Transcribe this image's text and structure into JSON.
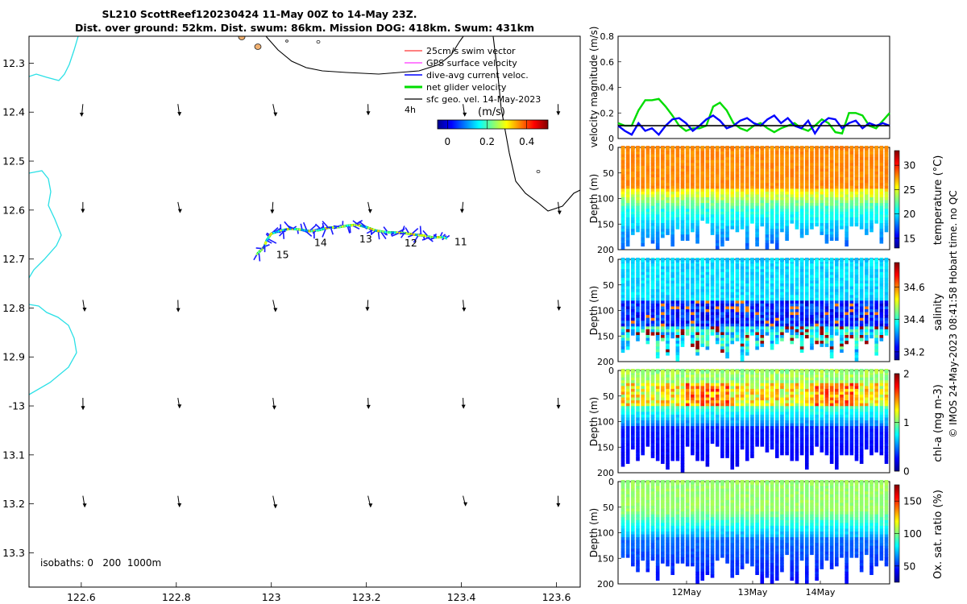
{
  "title": {
    "line1": "SL210 ScottReef120230424 11-May 00Z to 14-May 23Z.",
    "line2": "Dist. over ground: 52km. Dist. swum: 86km. Mission DOG: 418km. Swum: 431km"
  },
  "credit": "© IMOS 24-May-2023 08:41:58 Hobart time. no QC",
  "chart_data": [
    {
      "type": "scatter",
      "name": "glider-track-map",
      "xlim": [
        122.49,
        123.65
      ],
      "ylim": [
        -13.37,
        -12.245
      ],
      "xticks": [
        122.6,
        122.8,
        123,
        123.2,
        123.4,
        123.6
      ],
      "xtick_labels": [
        "122.6",
        "122.8",
        "123",
        "123.2",
        "123.4",
        "123.6"
      ],
      "yticks": [
        -12.3,
        -12.4,
        -12.5,
        -12.6,
        -12.7,
        -12.8,
        -12.9,
        -13,
        -13.1,
        -13.2,
        -13.3
      ],
      "ytick_labels": [
        "12.3",
        "12.4",
        "12.5",
        "12.6",
        "12.7",
        "12.8",
        "12.9",
        "-13",
        "13.1",
        "13.2",
        "13.3"
      ],
      "legend": {
        "position": "top-right",
        "items": [
          {
            "label": "25cm/s swim vector",
            "color": "#ff0000"
          },
          {
            "label": "GPS surface velocity",
            "color": "#ff00ff"
          },
          {
            "label": "dive-avg current veloc.",
            "color": "#0000ff"
          },
          {
            "label": "net glider velocity",
            "color": "#00dd00"
          },
          {
            "label": "sfc geo. vel. 14-May-2023",
            "color": "#000000"
          }
        ],
        "note": "4h"
      },
      "colorbar": {
        "label": "(m/s)",
        "ticks": [
          "0",
          "0.2",
          "0.4"
        ],
        "range": [
          0,
          0.5
        ]
      },
      "isobath_note": "isobaths: 0   200  1000m",
      "track": [
        {
          "lon": 122.97,
          "lat": -12.69
        },
        {
          "lon": 122.985,
          "lat": -12.675
        },
        {
          "lon": 122.99,
          "lat": -12.662
        },
        {
          "lon": 123.0,
          "lat": -12.648
        },
        {
          "lon": 123.02,
          "lat": -12.642
        },
        {
          "lon": 123.04,
          "lat": -12.638
        },
        {
          "lon": 123.06,
          "lat": -12.64
        },
        {
          "lon": 123.08,
          "lat": -12.643
        },
        {
          "lon": 123.1,
          "lat": -12.641
        },
        {
          "lon": 123.12,
          "lat": -12.636
        },
        {
          "lon": 123.14,
          "lat": -12.635
        },
        {
          "lon": 123.16,
          "lat": -12.632
        },
        {
          "lon": 123.18,
          "lat": -12.63
        },
        {
          "lon": 123.2,
          "lat": -12.635
        },
        {
          "lon": 123.22,
          "lat": -12.642
        },
        {
          "lon": 123.24,
          "lat": -12.645
        },
        {
          "lon": 123.26,
          "lat": -12.646
        },
        {
          "lon": 123.28,
          "lat": -12.647
        },
        {
          "lon": 123.3,
          "lat": -12.65
        },
        {
          "lon": 123.32,
          "lat": -12.652
        },
        {
          "lon": 123.34,
          "lat": -12.656
        },
        {
          "lon": 123.36,
          "lat": -12.655
        },
        {
          "lon": 123.37,
          "lat": -12.658
        }
      ],
      "day_labels": [
        {
          "text": "11",
          "lon": 123.375,
          "lat": -12.655
        },
        {
          "text": "12",
          "lon": 123.27,
          "lat": -12.658
        },
        {
          "text": "13",
          "lon": 123.175,
          "lat": -12.65
        },
        {
          "text": "14",
          "lon": 123.08,
          "lat": -12.657
        },
        {
          "text": "15",
          "lon": 123.0,
          "lat": -12.682
        }
      ]
    },
    {
      "type": "line",
      "name": "velocity-magnitude",
      "ylabel": "velocity magnitude (m/s)",
      "ylim": [
        0,
        0.8
      ],
      "yticks": [
        0,
        0.2,
        0.4,
        0.6,
        0.8
      ],
      "series": [
        {
          "name": "net glider velocity",
          "color": "#00dd00",
          "values": [
            0.12,
            0.1,
            0.1,
            0.22,
            0.3,
            0.3,
            0.31,
            0.25,
            0.18,
            0.1,
            0.06,
            0.08,
            0.08,
            0.1,
            0.25,
            0.28,
            0.22,
            0.12,
            0.08,
            0.06,
            0.1,
            0.12,
            0.08,
            0.05,
            0.08,
            0.1,
            0.12,
            0.08,
            0.06,
            0.1,
            0.15,
            0.12,
            0.05,
            0.04,
            0.2,
            0.2,
            0.18,
            0.1,
            0.08,
            0.14,
            0.2
          ]
        },
        {
          "name": "dive-avg current",
          "color": "#0000ff",
          "values": [
            0.1,
            0.06,
            0.03,
            0.12,
            0.06,
            0.08,
            0.03,
            0.1,
            0.15,
            0.16,
            0.12,
            0.06,
            0.1,
            0.15,
            0.18,
            0.14,
            0.08,
            0.1,
            0.14,
            0.16,
            0.12,
            0.1,
            0.15,
            0.18,
            0.12,
            0.16,
            0.1,
            0.08,
            0.14,
            0.04,
            0.12,
            0.16,
            0.15,
            0.08,
            0.12,
            0.14,
            0.08,
            0.12,
            0.1,
            0.12,
            0.1
          ]
        },
        {
          "name": "mean",
          "color": "#000000",
          "values": [
            0.1,
            0.1,
            0.1,
            0.1,
            0.1,
            0.1,
            0.1,
            0.1,
            0.1,
            0.1,
            0.1,
            0.1,
            0.1,
            0.1,
            0.1,
            0.1,
            0.1,
            0.1,
            0.1,
            0.1,
            0.1,
            0.1,
            0.1,
            0.1,
            0.1,
            0.1,
            0.1,
            0.1,
            0.1,
            0.1,
            0.1,
            0.1,
            0.1,
            0.1,
            0.1,
            0.1,
            0.1,
            0.1,
            0.1,
            0.1,
            0.1
          ]
        }
      ]
    },
    {
      "type": "heatmap",
      "name": "temperature-section",
      "ylabel": "Depth (m)",
      "ylim": [
        0,
        200
      ],
      "yticks": [
        0,
        50,
        100,
        150,
        200
      ],
      "cbar_label": "temperature (°C)",
      "cbar_range": [
        13,
        33
      ],
      "cbar_ticks": [
        15,
        20,
        25,
        30
      ]
    },
    {
      "type": "heatmap",
      "name": "salinity-section",
      "ylabel": "Depth (m)",
      "ylim": [
        0,
        200
      ],
      "yticks": [
        0,
        50,
        100,
        150,
        200
      ],
      "cbar_label": "salinity",
      "cbar_range": [
        34.15,
        34.75
      ],
      "cbar_ticks": [
        34.2,
        34.4,
        34.6
      ]
    },
    {
      "type": "heatmap",
      "name": "chla-section",
      "ylabel": "Depth (m)",
      "ylim": [
        0,
        200
      ],
      "yticks": [
        0,
        50,
        100,
        150,
        200
      ],
      "cbar_label": "chl-a (mg m-3)",
      "cbar_range": [
        0,
        2
      ],
      "cbar_ticks": [
        0,
        1,
        2
      ]
    },
    {
      "type": "heatmap",
      "name": "oxygen-section",
      "ylabel": "Depth (m)",
      "ylim": [
        0,
        200
      ],
      "yticks": [
        0,
        50,
        100,
        150,
        200
      ],
      "cbar_label": "Ox. sat. ratio (%)",
      "cbar_range": [
        25,
        175
      ],
      "cbar_ticks": [
        50,
        100,
        150
      ],
      "xtick_labels": [
        "12May",
        "13May",
        "14May"
      ]
    }
  ]
}
